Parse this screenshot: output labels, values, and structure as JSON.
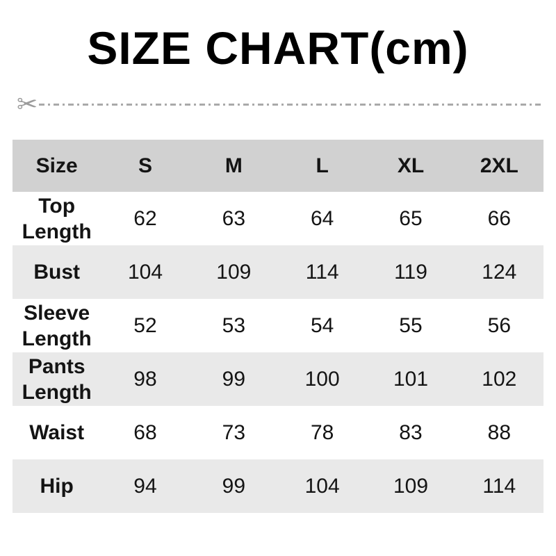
{
  "title": "SIZE CHART(cm)",
  "cut_line": {
    "scissors_icon": "✂"
  },
  "colors": {
    "header_row_bg": "#d1d1d1",
    "alt_row_bg": "#e9e9e9",
    "row_bg": "#ffffff",
    "title_text": "#000000",
    "body_text": "#141414",
    "cut_line": "#a9a9a9"
  },
  "chart_data": {
    "type": "table",
    "title": "SIZE CHART(cm)",
    "unit": "cm",
    "columns": [
      "Size",
      "S",
      "M",
      "L",
      "XL",
      "2XL"
    ],
    "rows": [
      {
        "label": "Top Length",
        "values": [
          62,
          63,
          64,
          65,
          66
        ]
      },
      {
        "label": "Bust",
        "values": [
          104,
          109,
          114,
          119,
          124
        ]
      },
      {
        "label": "Sleeve Length",
        "values": [
          52,
          53,
          54,
          55,
          56
        ]
      },
      {
        "label": "Pants Length",
        "values": [
          98,
          99,
          100,
          101,
          102
        ]
      },
      {
        "label": "Waist",
        "values": [
          68,
          73,
          78,
          83,
          88
        ]
      },
      {
        "label": "Hip",
        "values": [
          94,
          99,
          104,
          109,
          114
        ]
      }
    ]
  }
}
